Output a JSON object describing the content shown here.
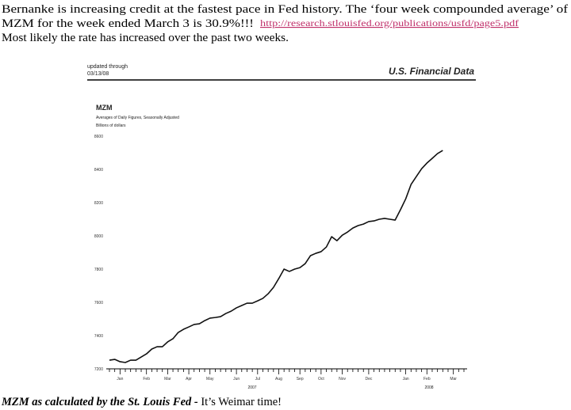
{
  "intro": {
    "line1": "Bernanke is increasing credit at the fastest pace in Fed history.  The ‘four week compounded average’ of",
    "line2": "MZM for the week ended March 3 is 30.9%!!!",
    "link": "http://research.stlouisfed.org/publications/usfd/page5.pdf",
    "line3": "Most likely the rate has increased over the past two weeks."
  },
  "caption": {
    "emphasis": "MZM as calculated by the St. Louis Fed -",
    "text": " It’s Weimar time!"
  },
  "chart_data": {
    "type": "line",
    "header": {
      "updated": "updated through",
      "date": "03/13/08",
      "source": "U.S. Financial Data"
    },
    "title": "MZM",
    "subtitle": "Averages of Daily Figures, Seasonally Adjusted",
    "y_label": "Billions of dollars",
    "year_labels": [
      "2007",
      "2008"
    ],
    "categories": [
      null,
      null,
      "Jan",
      null,
      null,
      null,
      null,
      "Feb",
      null,
      null,
      null,
      "Mar",
      null,
      null,
      null,
      "Apr",
      null,
      null,
      null,
      "May",
      null,
      null,
      null,
      null,
      "Jun",
      null,
      null,
      null,
      "Jul",
      null,
      null,
      null,
      "Aug",
      null,
      null,
      null,
      "Sep",
      null,
      null,
      null,
      "Oct",
      null,
      null,
      null,
      "Nov",
      null,
      null,
      null,
      null,
      "Dec",
      null,
      null,
      null,
      null,
      null,
      null,
      "Jan",
      null,
      null,
      null,
      "Feb",
      null,
      null,
      null,
      null,
      "Mar",
      null,
      null
    ],
    "values": [
      7252,
      7257,
      7243,
      7238,
      7252,
      7252,
      7271,
      7290,
      7319,
      7333,
      7333,
      7362,
      7381,
      7419,
      7438,
      7452,
      7467,
      7471,
      7490,
      7505,
      7509,
      7514,
      7533,
      7547,
      7567,
      7581,
      7595,
      7595,
      7609,
      7624,
      7652,
      7690,
      7743,
      7800,
      7786,
      7800,
      7809,
      7833,
      7881,
      7895,
      7905,
      7933,
      7995,
      7971,
      8004,
      8023,
      8047,
      8062,
      8071,
      8086,
      8090,
      8100,
      8105,
      8100,
      8095,
      8157,
      8223,
      8309,
      8357,
      8404,
      8438,
      8466,
      8495,
      8514,
      null,
      null,
      null,
      null
    ],
    "color": "#111111",
    "ylim": [
      7200,
      8600
    ],
    "yticks": [
      7200,
      7400,
      7600,
      7800,
      8000,
      8200,
      8400,
      8600
    ],
    "grid": false
  }
}
